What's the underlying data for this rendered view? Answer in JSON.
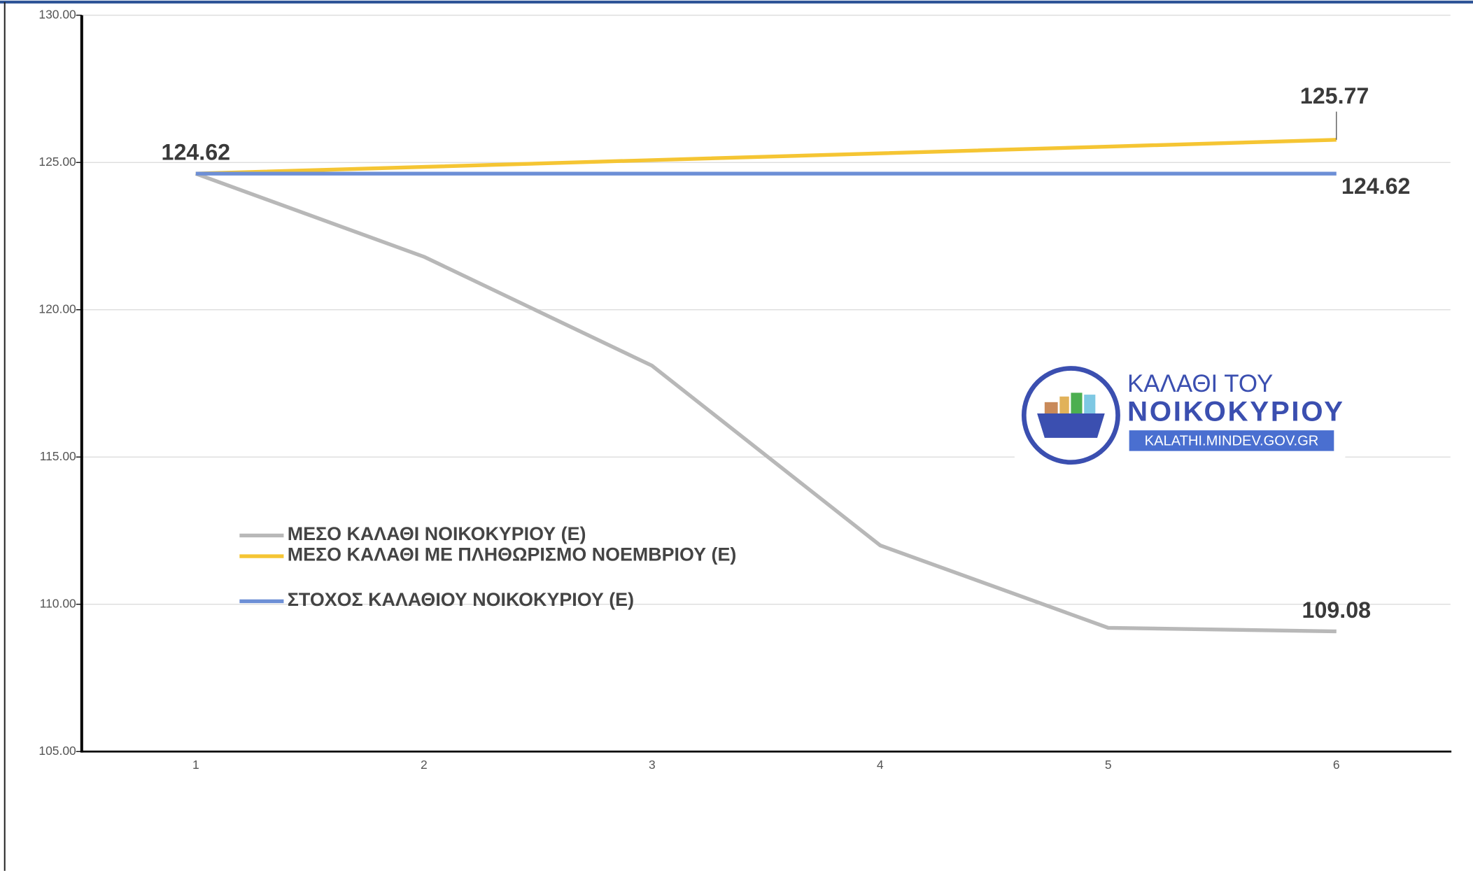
{
  "chart_data": {
    "type": "line",
    "categories": [
      "1",
      "2",
      "3",
      "4",
      "5",
      "6"
    ],
    "series": [
      {
        "name": "ΜΕΣΟ ΚΑΛΑΘΙ ΝΟΙΚΟΚΥΡΙΟΥ (Ε)",
        "color": "#b8b8b8",
        "values": [
          124.62,
          121.8,
          118.1,
          112.0,
          109.2,
          109.08
        ]
      },
      {
        "name": "ΜΕΣΟ ΚΑΛΑΘΙ ΜΕ ΠΛΗΘΩΡΙΣΜΟ ΝΟΕΜΒΡΙΟΥ (Ε)",
        "color": "#f5c533",
        "values": [
          124.62,
          124.85,
          125.08,
          125.31,
          125.54,
          125.77
        ]
      },
      {
        "name": "ΣΤΟΧΟΣ ΚΑΛΑΘΙΟΥ ΝΟΙΚΟΚΥΡΙΟΥ (Ε)",
        "color": "#6d8fd6",
        "values": [
          124.62,
          124.62,
          124.62,
          124.62,
          124.62,
          124.62
        ]
      }
    ],
    "ylim": [
      105,
      130
    ],
    "yticks": [
      {
        "value": 105,
        "label": "105.00"
      },
      {
        "value": 110,
        "label": "110.00"
      },
      {
        "value": 115,
        "label": "115.00"
      },
      {
        "value": 120,
        "label": "120.00"
      },
      {
        "value": 125,
        "label": "125.00"
      },
      {
        "value": 130,
        "label": "130.00"
      }
    ],
    "grid": true,
    "legend": "left",
    "logo": {
      "line1": "ΚΑΛΑΘΙ ΤΟΥ",
      "line2": "ΝΟΙΚΟΚΥΡΙΟΥ",
      "url": "KALATHI.MINDEV.GOV.GR"
    }
  }
}
